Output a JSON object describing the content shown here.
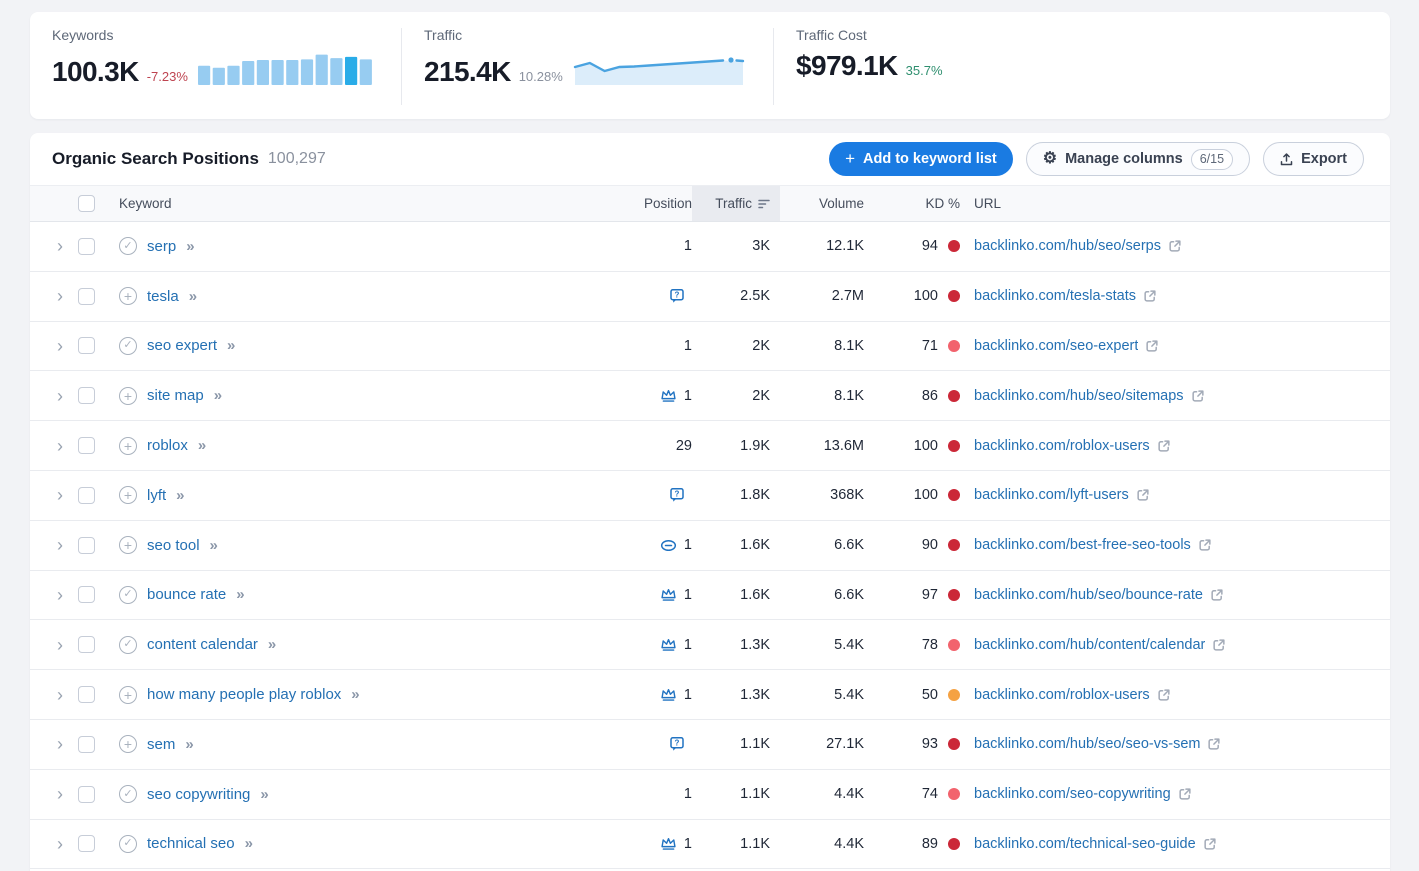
{
  "stats": {
    "keywords": {
      "label": "Keywords",
      "value": "100.3K",
      "change": "-7.23%"
    },
    "traffic": {
      "label": "Traffic",
      "value": "215.4K",
      "change": "10.28%"
    },
    "traffic_cost": {
      "label": "Traffic Cost",
      "value": "$979.1K",
      "change": "35.7%"
    }
  },
  "chart_data": [
    {
      "type": "bar",
      "name": "keywords-trend",
      "values": [
        60,
        54,
        60,
        75,
        78,
        78,
        78,
        80,
        95,
        84,
        88,
        80
      ],
      "highlight_index": 10,
      "bar_color": "#97CCF1",
      "highlight_color": "#29ACE8",
      "ylim": [
        0,
        100
      ]
    },
    {
      "type": "area",
      "name": "traffic-trend",
      "y": [
        15,
        11,
        19,
        15,
        14.5,
        13.5,
        12.5,
        11.5,
        10.5,
        9.5,
        8.5
      ],
      "line_color": "#4AA3E0",
      "fill_color": "#DCEDFA",
      "end_dot": true
    }
  ],
  "table": {
    "title": "Organic Search Positions",
    "count": "100,297",
    "buttons": {
      "add": "Add to keyword list",
      "manage": "Manage columns",
      "manage_badge": "6/15",
      "export": "Export"
    },
    "columns": [
      "Keyword",
      "Position",
      "Traffic",
      "Volume",
      "KD %",
      "URL"
    ],
    "kd_colors": {
      "hard": "#CB2838",
      "medium": "#F2636D",
      "moderate": "#F5A243"
    },
    "rows": [
      {
        "keyword": "serp",
        "state": "added",
        "serp_icon": "",
        "position": "1",
        "traffic": "3K",
        "volume": "12.1K",
        "kd": "94",
        "kd_level": "hard",
        "url": "backlinko.com/hub/seo/serps"
      },
      {
        "keyword": "tesla",
        "state": "add",
        "serp_icon": "question",
        "position": "",
        "traffic": "2.5K",
        "volume": "2.7M",
        "kd": "100",
        "kd_level": "hard",
        "url": "backlinko.com/tesla-stats"
      },
      {
        "keyword": "seo expert",
        "state": "added",
        "serp_icon": "",
        "position": "1",
        "traffic": "2K",
        "volume": "8.1K",
        "kd": "71",
        "kd_level": "medium",
        "url": "backlinko.com/seo-expert"
      },
      {
        "keyword": "site map",
        "state": "add",
        "serp_icon": "crown",
        "position": "1",
        "traffic": "2K",
        "volume": "8.1K",
        "kd": "86",
        "kd_level": "hard",
        "url": "backlinko.com/hub/seo/sitemaps"
      },
      {
        "keyword": "roblox",
        "state": "add",
        "serp_icon": "",
        "position": "29",
        "traffic": "1.9K",
        "volume": "13.6M",
        "kd": "100",
        "kd_level": "hard",
        "url": "backlinko.com/roblox-users"
      },
      {
        "keyword": "lyft",
        "state": "add",
        "serp_icon": "question",
        "position": "",
        "traffic": "1.8K",
        "volume": "368K",
        "kd": "100",
        "kd_level": "hard",
        "url": "backlinko.com/lyft-users"
      },
      {
        "keyword": "seo tool",
        "state": "add",
        "serp_icon": "link",
        "position": "1",
        "traffic": "1.6K",
        "volume": "6.6K",
        "kd": "90",
        "kd_level": "hard",
        "url": "backlinko.com/best-free-seo-tools"
      },
      {
        "keyword": "bounce rate",
        "state": "added",
        "serp_icon": "crown",
        "position": "1",
        "traffic": "1.6K",
        "volume": "6.6K",
        "kd": "97",
        "kd_level": "hard",
        "url": "backlinko.com/hub/seo/bounce-rate"
      },
      {
        "keyword": "content calendar",
        "state": "added",
        "serp_icon": "crown",
        "position": "1",
        "traffic": "1.3K",
        "volume": "5.4K",
        "kd": "78",
        "kd_level": "medium",
        "url": "backlinko.com/hub/content/calendar"
      },
      {
        "keyword": "how many people play roblox",
        "state": "add",
        "serp_icon": "crown",
        "position": "1",
        "traffic": "1.3K",
        "volume": "5.4K",
        "kd": "50",
        "kd_level": "moderate",
        "url": "backlinko.com/roblox-users"
      },
      {
        "keyword": "sem",
        "state": "add",
        "serp_icon": "question",
        "position": "",
        "traffic": "1.1K",
        "volume": "27.1K",
        "kd": "93",
        "kd_level": "hard",
        "url": "backlinko.com/hub/seo/seo-vs-sem"
      },
      {
        "keyword": "seo copywriting",
        "state": "added",
        "serp_icon": "",
        "position": "1",
        "traffic": "1.1K",
        "volume": "4.4K",
        "kd": "74",
        "kd_level": "medium",
        "url": "backlinko.com/seo-copywriting"
      },
      {
        "keyword": "technical seo",
        "state": "added",
        "serp_icon": "crown",
        "position": "1",
        "traffic": "1.1K",
        "volume": "4.4K",
        "kd": "89",
        "kd_level": "hard",
        "url": "backlinko.com/technical-seo-guide"
      }
    ]
  }
}
